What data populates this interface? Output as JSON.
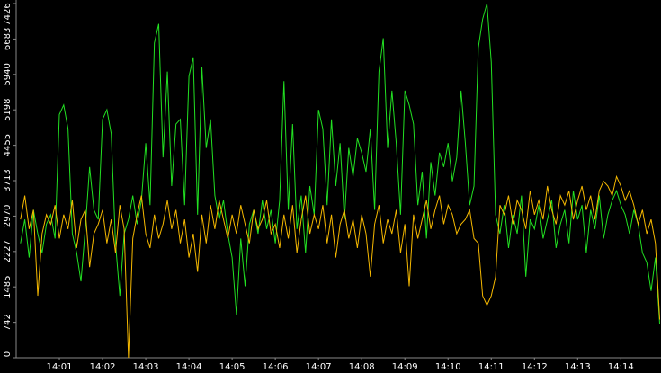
{
  "chart_data": {
    "type": "line",
    "xlim": [
      0,
      14.93
    ],
    "xticks": [
      {
        "value": 1,
        "label": "14:01"
      },
      {
        "value": 2,
        "label": "14:02"
      },
      {
        "value": 3,
        "label": "14:03"
      },
      {
        "value": 4,
        "label": "14:04"
      },
      {
        "value": 5,
        "label": "14:05"
      },
      {
        "value": 6,
        "label": "14:06"
      },
      {
        "value": 7,
        "label": "14:07"
      },
      {
        "value": 8,
        "label": "14:08"
      },
      {
        "value": 9,
        "label": "14:09"
      },
      {
        "value": 10,
        "label": "14:10"
      },
      {
        "value": 11,
        "label": "14:11"
      },
      {
        "value": 12,
        "label": "14:12"
      },
      {
        "value": 13,
        "label": "14:13"
      },
      {
        "value": 14,
        "label": "14:14"
      }
    ],
    "ylim": [
      0,
      7426
    ],
    "yticks": [
      0,
      742,
      1485,
      2227,
      2970,
      3713,
      4455,
      5198,
      5940,
      6683,
      7426
    ],
    "grid": false,
    "x": [
      0.1,
      0.2,
      0.3,
      0.4,
      0.5,
      0.6,
      0.7,
      0.8,
      0.9,
      1.0,
      1.1,
      1.2,
      1.3,
      1.4,
      1.5,
      1.6,
      1.7,
      1.8,
      1.9,
      2.0,
      2.1,
      2.2,
      2.3,
      2.4,
      2.5,
      2.6,
      2.7,
      2.8,
      2.9,
      3.0,
      3.1,
      3.2,
      3.3,
      3.4,
      3.5,
      3.6,
      3.7,
      3.8,
      3.9,
      4.0,
      4.1,
      4.2,
      4.3,
      4.4,
      4.5,
      4.6,
      4.7,
      4.8,
      4.9,
      5.0,
      5.1,
      5.2,
      5.3,
      5.4,
      5.5,
      5.6,
      5.7,
      5.8,
      5.9,
      6.0,
      6.1,
      6.2,
      6.3,
      6.4,
      6.5,
      6.6,
      6.7,
      6.8,
      6.9,
      7.0,
      7.1,
      7.2,
      7.3,
      7.4,
      7.5,
      7.6,
      7.7,
      7.8,
      7.9,
      8.0,
      8.1,
      8.2,
      8.3,
      8.4,
      8.5,
      8.6,
      8.7,
      8.8,
      8.9,
      9.0,
      9.1,
      9.2,
      9.3,
      9.4,
      9.5,
      9.6,
      9.7,
      9.8,
      9.9,
      10.0,
      10.1,
      10.2,
      10.3,
      10.4,
      10.5,
      10.6,
      10.7,
      10.8,
      10.9,
      11.0,
      11.1,
      11.2,
      11.3,
      11.4,
      11.5,
      11.6,
      11.7,
      11.8,
      11.9,
      12.0,
      12.1,
      12.2,
      12.3,
      12.4,
      12.5,
      12.6,
      12.7,
      12.8,
      12.9,
      13.0,
      13.1,
      13.2,
      13.3,
      13.4,
      13.5,
      13.6,
      13.7,
      13.8,
      13.9,
      14.0,
      14.1,
      14.2,
      14.3,
      14.4,
      14.5,
      14.6,
      14.7,
      14.8,
      14.9
    ],
    "series": [
      {
        "color": "#22e022",
        "values": [
          2400,
          2900,
          2100,
          3100,
          2600,
          2200,
          2800,
          3000,
          2500,
          5100,
          5300,
          4800,
          2600,
          2200,
          1600,
          2700,
          4000,
          3100,
          2900,
          5000,
          5200,
          4700,
          2400,
          1300,
          2600,
          2900,
          3400,
          2800,
          3300,
          4500,
          3200,
          6600,
          7000,
          4200,
          6000,
          3600,
          4900,
          5000,
          3200,
          5900,
          6300,
          3000,
          6100,
          4400,
          5000,
          3400,
          2900,
          3300,
          2600,
          2100,
          900,
          2500,
          1500,
          2800,
          3100,
          2600,
          3300,
          2700,
          3100,
          2400,
          3300,
          5800,
          3100,
          4900,
          2700,
          3400,
          2200,
          3600,
          3000,
          5200,
          4800,
          3200,
          5000,
          3600,
          4500,
          2900,
          4400,
          3800,
          4600,
          4300,
          3900,
          4800,
          3100,
          6000,
          6700,
          4400,
          5600,
          4500,
          3000,
          5600,
          5300,
          4900,
          3200,
          3900,
          2500,
          4100,
          3400,
          4300,
          4000,
          4500,
          3700,
          4200,
          5600,
          4500,
          3200,
          3600,
          6500,
          7100,
          7426,
          6200,
          3000,
          2600,
          3200,
          2300,
          3000,
          2600,
          3400,
          1700,
          2900,
          2700,
          3200,
          2500,
          2900,
          3300,
          2300,
          2800,
          3100,
          2400,
          3500,
          2900,
          3200,
          2200,
          3100,
          2700,
          3400,
          2500,
          3000,
          3300,
          3500,
          3200,
          3000,
          2600,
          3100,
          2800,
          2200,
          2000,
          1400,
          2100,
          700
        ]
      },
      {
        "color": "#f5b800",
        "values": [
          2900,
          3400,
          2700,
          3100,
          1300,
          2600,
          3000,
          2800,
          3200,
          2500,
          3000,
          2700,
          3300,
          2300,
          2900,
          3100,
          1900,
          2600,
          2800,
          3100,
          2400,
          2900,
          2200,
          3200,
          2700,
          0,
          2500,
          3000,
          3400,
          2600,
          2300,
          3000,
          2500,
          2800,
          3300,
          2700,
          3100,
          2400,
          2900,
          2100,
          2600,
          1800,
          3000,
          2400,
          3200,
          2700,
          3300,
          2900,
          2500,
          3000,
          2600,
          3200,
          2800,
          2400,
          3100,
          2700,
          2900,
          3300,
          2600,
          2800,
          2300,
          3000,
          2500,
          3200,
          2200,
          2900,
          3400,
          2600,
          3000,
          2700,
          3200,
          2400,
          3000,
          2100,
          2800,
          3100,
          2500,
          2900,
          2300,
          3000,
          2600,
          1700,
          2800,
          3200,
          2400,
          2900,
          2600,
          3100,
          2200,
          2800,
          1500,
          3000,
          2500,
          2900,
          3300,
          2700,
          3100,
          3400,
          2800,
          3200,
          3000,
          2600,
          2800,
          2900,
          3100,
          2500,
          2400,
          1300,
          1100,
          1300,
          1700,
          3200,
          3000,
          3400,
          2800,
          3300,
          3100,
          2700,
          3500,
          3000,
          3300,
          2900,
          3600,
          3100,
          2800,
          3400,
          3200,
          3500,
          2900,
          3300,
          3600,
          3100,
          3400,
          2900,
          3500,
          3700,
          3600,
          3400,
          3800,
          3600,
          3300,
          3500,
          3200,
          2800,
          3100,
          2600,
          2900,
          2400,
          800
        ]
      }
    ]
  }
}
